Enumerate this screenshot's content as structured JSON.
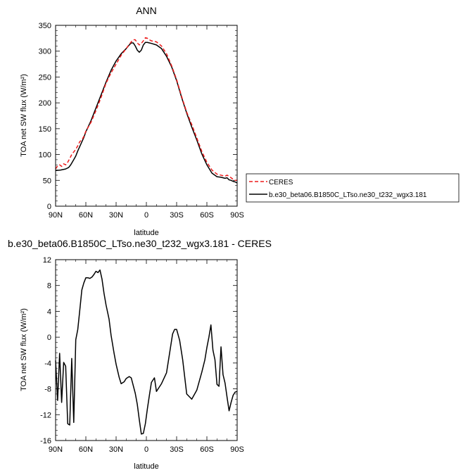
{
  "chart_data": [
    {
      "type": "line",
      "title": "ANN",
      "xlabel": "latitude",
      "ylabel": "TOA net SW flux (W/m²)",
      "xticks": [
        "90N",
        "60N",
        "30N",
        "0",
        "30S",
        "60S",
        "90S"
      ],
      "xtick_values": [
        -90,
        -60,
        -30,
        0,
        30,
        60,
        90
      ],
      "yticks": [
        0,
        50,
        100,
        150,
        200,
        250,
        300,
        350
      ],
      "xlim": [
        -90,
        90
      ],
      "ylim": [
        0,
        350
      ],
      "legend": {
        "placement": "outside-right"
      },
      "series": [
        {
          "name": "CERES",
          "color": "#ee1c1c",
          "dash": "dashed",
          "x": [
            -90,
            -88,
            -86,
            -84,
            -82,
            -80,
            -78,
            -76,
            -74,
            -72,
            -70,
            -68,
            -66,
            -64,
            -62,
            -60,
            -55,
            -50,
            -45,
            -40,
            -35,
            -30,
            -25,
            -20,
            -17,
            -15,
            -13,
            -11,
            -9,
            -7,
            -5,
            -3,
            -1,
            1,
            3,
            5,
            10,
            15,
            20,
            25,
            30,
            35,
            40,
            45,
            50,
            55,
            60,
            65,
            70,
            74,
            76,
            78,
            80,
            82,
            84,
            86,
            88,
            90
          ],
          "y": [
            72,
            78,
            80,
            77,
            82,
            80,
            85,
            92,
            100,
            105,
            110,
            117,
            125,
            128,
            135,
            145,
            162,
            185,
            210,
            238,
            258,
            275,
            292,
            305,
            313,
            318,
            322,
            322,
            316,
            312,
            315,
            320,
            326,
            325,
            322,
            320,
            318,
            310,
            295,
            272,
            245,
            212,
            182,
            158,
            132,
            106,
            85,
            70,
            62,
            60,
            59,
            58,
            60,
            58,
            55,
            52,
            50,
            50
          ]
        },
        {
          "name": "b.e30_beta06.B1850C_LTso.ne30_t232_wgx3.181",
          "color": "#000000",
          "dash": "solid",
          "x": [
            -90,
            -85,
            -80,
            -77,
            -75,
            -72,
            -70,
            -68,
            -65,
            -62,
            -60,
            -55,
            -50,
            -45,
            -40,
            -35,
            -30,
            -25,
            -20,
            -17,
            -15,
            -13,
            -11,
            -9,
            -7,
            -5,
            -3,
            -1,
            1,
            3,
            5,
            10,
            15,
            20,
            25,
            30,
            35,
            40,
            45,
            50,
            55,
            60,
            65,
            70,
            74,
            76,
            78,
            80,
            82,
            84,
            86,
            88,
            90
          ],
          "y": [
            69,
            70,
            72,
            75,
            80,
            90,
            97,
            107,
            120,
            133,
            144,
            165,
            190,
            215,
            240,
            263,
            281,
            295,
            305,
            312,
            316,
            316,
            310,
            302,
            298,
            302,
            312,
            317,
            317,
            316,
            315,
            312,
            305,
            290,
            270,
            243,
            210,
            180,
            153,
            128,
            101,
            80,
            64,
            57,
            56,
            55,
            54,
            55,
            51,
            50,
            48,
            47,
            45
          ]
        }
      ]
    },
    {
      "type": "line",
      "title": "b.e30_beta06.B1850C_LTso.ne30_t232_wgx3.181 - CERES",
      "xlabel": "latitude",
      "ylabel": "TOA net SW flux (W/m²)",
      "xticks": [
        "90N",
        "60N",
        "30N",
        "0",
        "30S",
        "60S",
        "90S"
      ],
      "xtick_values": [
        -90,
        -60,
        -30,
        0,
        30,
        60,
        90
      ],
      "yticks": [
        12,
        8,
        4,
        0,
        -4,
        -8,
        -12,
        -16
      ],
      "xlim": [
        -90,
        90
      ],
      "ylim": [
        -16,
        12
      ],
      "series": [
        {
          "color": "#000000",
          "dash": "solid",
          "x": [
            -90,
            -88,
            -86,
            -84,
            -82,
            -80,
            -78,
            -76,
            -74,
            -72,
            -70,
            -68,
            -66,
            -64,
            -62,
            -60,
            -58,
            -56,
            -54,
            -52,
            -50,
            -48,
            -46,
            -44,
            -42,
            -40,
            -37,
            -35,
            -32,
            -30,
            -27,
            -25,
            -22,
            -20,
            -17,
            -15,
            -13,
            -11,
            -9,
            -7,
            -5,
            -3,
            -1,
            1,
            3,
            5,
            8,
            10,
            15,
            20,
            23,
            26,
            28,
            30,
            33,
            36,
            40,
            45,
            50,
            55,
            58,
            60,
            62,
            64,
            66,
            68,
            70,
            72,
            74,
            76,
            78,
            80,
            82,
            84,
            86,
            88,
            90
          ],
          "y": [
            -3.6,
            -9.8,
            -2.5,
            -10.1,
            -3.9,
            -4.5,
            -13.4,
            -13.6,
            -3.3,
            -13.2,
            -0.4,
            1.2,
            4.2,
            7.3,
            8.4,
            9.2,
            9.2,
            9.1,
            9.3,
            9.7,
            10.2,
            10.0,
            10.4,
            9.0,
            6.8,
            5.0,
            2.8,
            0.3,
            -2.5,
            -4.2,
            -6.2,
            -7.2,
            -6.9,
            -6.4,
            -6.1,
            -6.3,
            -7.5,
            -8.7,
            -10.4,
            -12.8,
            -15.0,
            -14.9,
            -13.4,
            -11.1,
            -9.0,
            -7.0,
            -6.3,
            -8.4,
            -7.2,
            -5.5,
            -2.5,
            0.5,
            1.2,
            1.2,
            -0.5,
            -3.5,
            -8.8,
            -9.6,
            -8.2,
            -5.4,
            -3.5,
            -1.6,
            0.0,
            1.9,
            -2.0,
            -3.5,
            -7.3,
            -7.6,
            -1.5,
            -5.8,
            -7.1,
            -9.3,
            -11.4,
            -10.1,
            -9.0,
            -8.5,
            -8.4
          ]
        }
      ]
    }
  ]
}
